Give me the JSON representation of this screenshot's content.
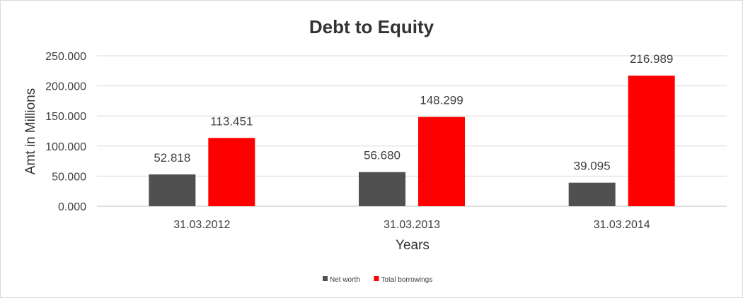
{
  "chart_data": {
    "type": "bar",
    "title": "Debt to Equity",
    "xlabel": "Years",
    "ylabel": "Amt in Millions",
    "categories": [
      "31.03.2012",
      "31.03.2013",
      "31.03.2014"
    ],
    "series": [
      {
        "name": "Net worth",
        "color": "#505050",
        "values": [
          52.818,
          56.68,
          39.095
        ],
        "labels": [
          "52.818",
          "56.680",
          "39.095"
        ]
      },
      {
        "name": "Total borrowings",
        "color": "#ff0000",
        "values": [
          113.451,
          148.299,
          216.989
        ],
        "labels": [
          "113.451",
          "148.299",
          "216.989"
        ]
      }
    ],
    "ylim": [
      0,
      250
    ],
    "yticks": [
      0,
      50,
      100,
      150,
      200,
      250
    ],
    "ytick_labels": [
      "0.000",
      "50.000",
      "100.000",
      "150.000",
      "200.000",
      "250.000"
    ],
    "grid": true,
    "legend_position": "bottom"
  }
}
